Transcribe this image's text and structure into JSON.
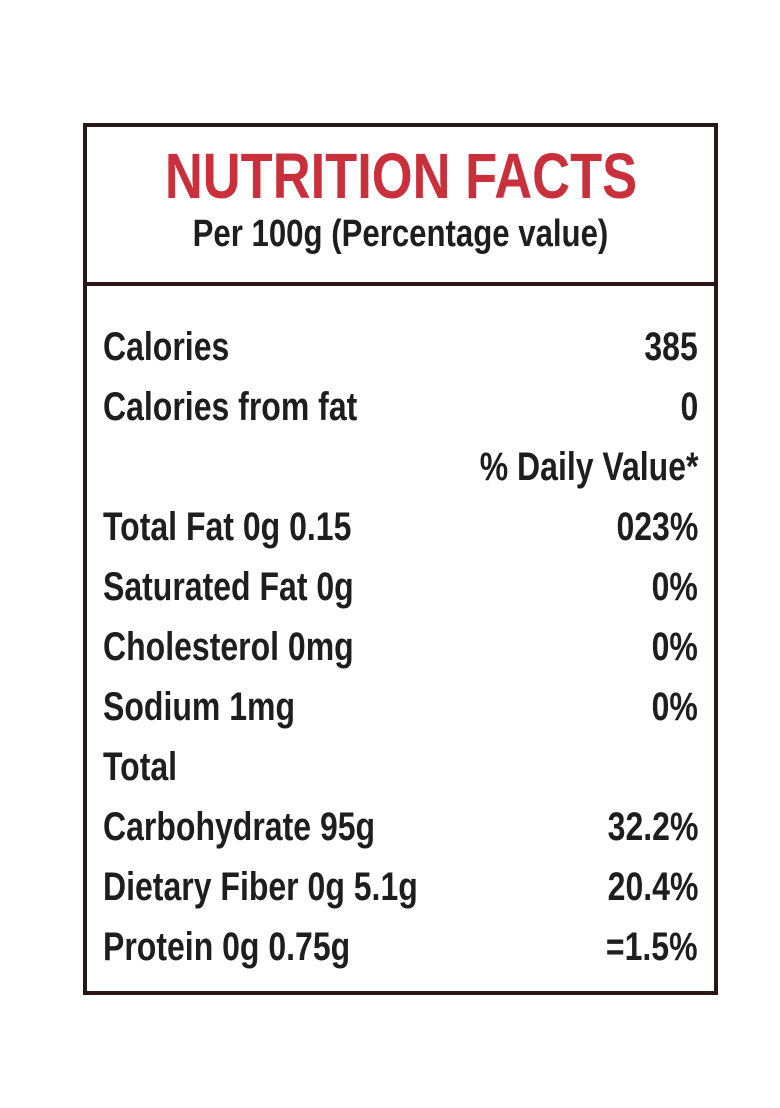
{
  "header": {
    "title": "NUTRITION FACTS",
    "subtitle": "Per 100g (Percentage value)"
  },
  "rows": [
    {
      "label": "Calories",
      "value": "385"
    },
    {
      "label": "Calories from fat",
      "value": "0"
    },
    {
      "value": "% Daily Value*"
    },
    {
      "label": "Total Fat 0g 0.15",
      "value": "023%"
    },
    {
      "label": "Saturated Fat 0g",
      "value": "0%"
    },
    {
      "label": "Cholesterol 0mg",
      "value": "0%"
    },
    {
      "label": "Sodium 1mg",
      "value": "0%"
    },
    {
      "label": "Total"
    },
    {
      "label": "Carbohydrate 95g",
      "value": "32.2%"
    },
    {
      "label": "Dietary Fiber 0g 5.1g",
      "value": "20.4%"
    },
    {
      "label": "Protein 0g 0.75g",
      "value": "=1.5%"
    }
  ]
}
